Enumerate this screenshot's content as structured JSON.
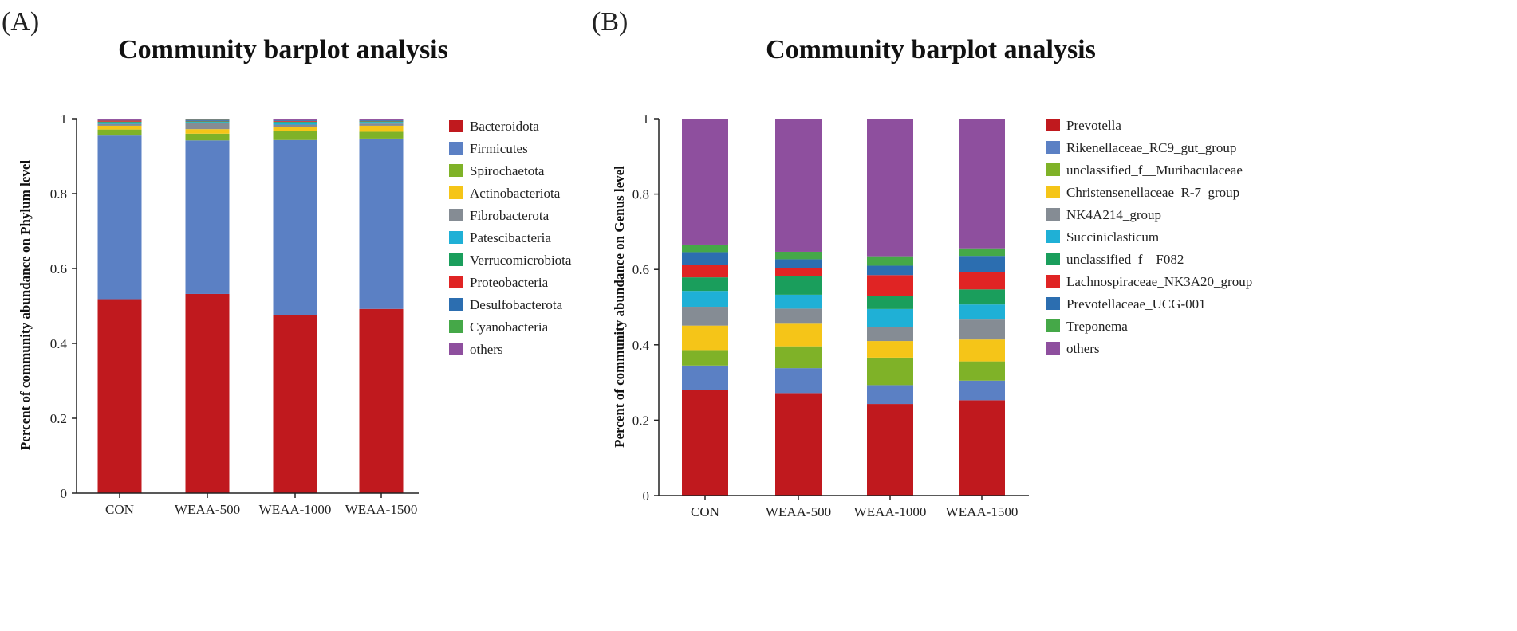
{
  "chart_data": [
    {
      "type": "bar",
      "stacked": true,
      "panel_label": "(A)",
      "title": "Community barplot analysis",
      "ylabel": "Percent of community abundance on Phylum level",
      "xlabel": "",
      "ylim": [
        0,
        1
      ],
      "y_ticks": [
        "0",
        "0.2",
        "0.4",
        "0.6",
        "0.8",
        "1"
      ],
      "legend_position": "right",
      "categories": [
        "CON",
        "WEAA-500",
        "WEAA-1000",
        "WEAA-1500"
      ],
      "series": [
        {
          "name": "Bacteroidota",
          "color": "#c0191e",
          "values": [
            0.518,
            0.532,
            0.476,
            0.492
          ]
        },
        {
          "name": "Firmicutes",
          "color": "#5b80c4",
          "values": [
            0.437,
            0.41,
            0.467,
            0.455
          ]
        },
        {
          "name": "Spirochaetota",
          "color": "#7fb228",
          "values": [
            0.016,
            0.018,
            0.023,
            0.018
          ]
        },
        {
          "name": "Actinobacteriota",
          "color": "#f5c518",
          "values": [
            0.01,
            0.012,
            0.012,
            0.016
          ]
        },
        {
          "name": "Fibrobacterota",
          "color": "#858c94",
          "values": [
            0.005,
            0.016,
            0.006,
            0.006
          ]
        },
        {
          "name": "Patescibacteria",
          "color": "#1fb0d6",
          "values": [
            0.004,
            0.003,
            0.006,
            0.004
          ]
        },
        {
          "name": "Verrucomicrobiota",
          "color": "#1a9e5c",
          "values": [
            0.002,
            0.002,
            0.002,
            0.002
          ]
        },
        {
          "name": "Proteobacteria",
          "color": "#e02424",
          "values": [
            0.003,
            0.001,
            0.002,
            0.001
          ]
        },
        {
          "name": "Desulfobacterota",
          "color": "#2c6eb0",
          "values": [
            0.002,
            0.004,
            0.002,
            0.002
          ]
        },
        {
          "name": "Cyanobacteria",
          "color": "#45a848",
          "values": [
            0.001,
            0.001,
            0.002,
            0.002
          ]
        },
        {
          "name": "others",
          "color": "#8e4f9e",
          "values": [
            0.002,
            0.001,
            0.002,
            0.002
          ]
        }
      ]
    },
    {
      "type": "bar",
      "stacked": true,
      "panel_label": "(B)",
      "title": "Community barplot analysis",
      "ylabel": "Percent of community abundance on Genus level",
      "xlabel": "",
      "ylim": [
        0,
        1
      ],
      "y_ticks": [
        "0",
        "0.2",
        "0.4",
        "0.6",
        "0.8",
        "1"
      ],
      "legend_position": "right",
      "categories": [
        "CON",
        "WEAA-500",
        "WEAA-1000",
        "WEAA-1500"
      ],
      "series": [
        {
          "name": "Prevotella",
          "color": "#c0191e",
          "values": [
            0.28,
            0.272,
            0.243,
            0.253
          ]
        },
        {
          "name": "Rikenellaceae_RC9_gut_group",
          "color": "#5b80c4",
          "values": [
            0.065,
            0.066,
            0.05,
            0.052
          ]
        },
        {
          "name": "unclassified_f__Muribaculaceae",
          "color": "#7fb228",
          "values": [
            0.041,
            0.058,
            0.073,
            0.051
          ]
        },
        {
          "name": "Christensenellaceae_R-7_group",
          "color": "#f5c518",
          "values": [
            0.065,
            0.06,
            0.044,
            0.058
          ]
        },
        {
          "name": "NK4A214_group",
          "color": "#858c94",
          "values": [
            0.05,
            0.04,
            0.038,
            0.053
          ]
        },
        {
          "name": "Succiniclasticum",
          "color": "#1fb0d6",
          "values": [
            0.042,
            0.037,
            0.047,
            0.04
          ]
        },
        {
          "name": "unclassified_f__F082",
          "color": "#1a9e5c",
          "values": [
            0.036,
            0.05,
            0.035,
            0.04
          ]
        },
        {
          "name": "Lachnospiraceae_NK3A20_group",
          "color": "#e02424",
          "values": [
            0.033,
            0.02,
            0.055,
            0.045
          ]
        },
        {
          "name": "Prevotellaceae_UCG-001",
          "color": "#2c6eb0",
          "values": [
            0.034,
            0.024,
            0.025,
            0.044
          ]
        },
        {
          "name": "Treponema",
          "color": "#45a848",
          "values": [
            0.02,
            0.02,
            0.025,
            0.02
          ]
        },
        {
          "name": "others",
          "color": "#8e4f9e",
          "values": [
            0.334,
            0.353,
            0.365,
            0.344
          ]
        }
      ]
    }
  ]
}
